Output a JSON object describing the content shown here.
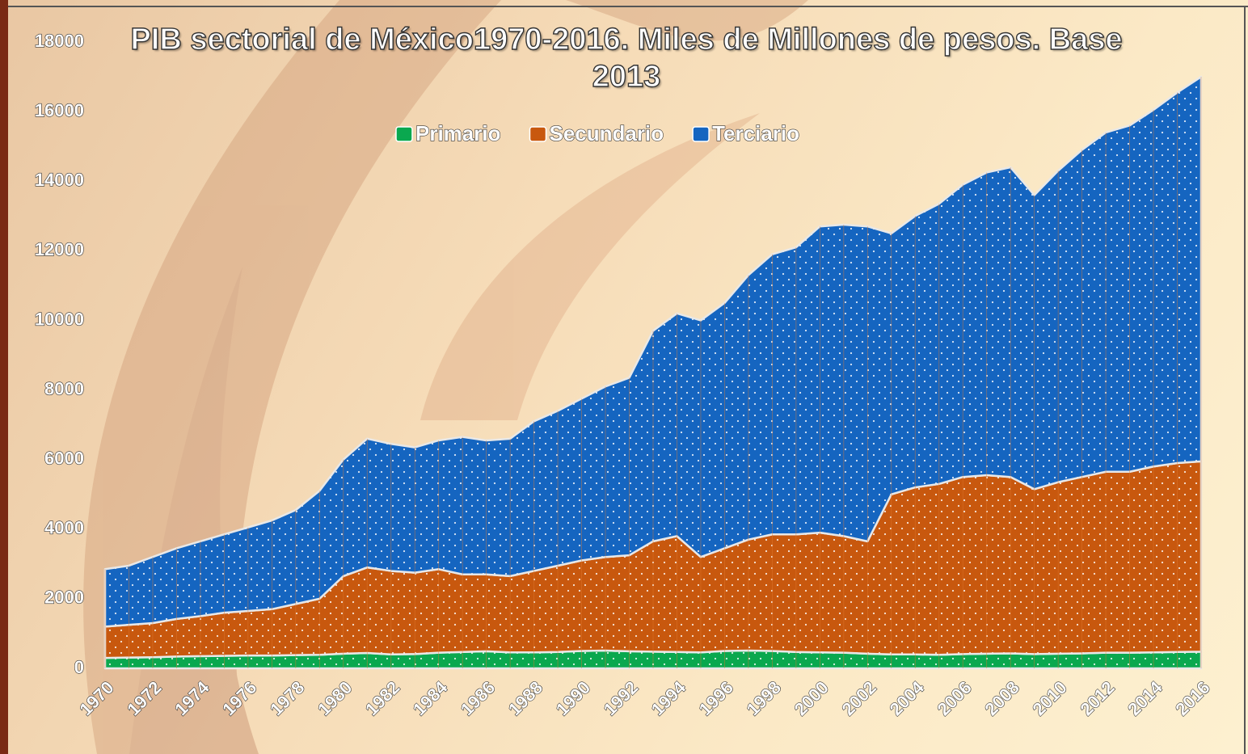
{
  "chart_data": {
    "type": "stacked-area",
    "title": "PIB sectorial de México1970-2016. Miles de Millones de pesos. Base 2013",
    "categories": [
      "1970",
      null,
      "1972",
      null,
      "1974",
      null,
      "1976",
      null,
      "1978",
      null,
      "1980",
      null,
      "1982",
      null,
      "1984",
      null,
      "1986",
      null,
      "1988",
      null,
      "1990",
      null,
      "1992",
      null,
      "1994",
      null,
      "1996",
      null,
      "1998",
      null,
      "2000",
      null,
      "2002",
      null,
      "2004",
      null,
      "2006",
      null,
      "2008",
      null,
      "2010",
      null,
      "2012",
      null,
      "2014",
      null,
      "2016"
    ],
    "series": [
      {
        "name": "Primario",
        "color": "#0aa84f",
        "values": [
          300,
          310,
          320,
          340,
          350,
          360,
          370,
          370,
          380,
          390,
          420,
          440,
          400,
          410,
          450,
          470,
          490,
          460,
          460,
          470,
          500,
          510,
          490,
          480,
          470,
          460,
          500,
          510,
          500,
          470,
          460,
          450,
          420,
          400,
          400,
          390,
          410,
          420,
          430,
          410,
          420,
          430,
          450,
          450,
          460,
          470,
          480
        ]
      },
      {
        "name": "Secundario",
        "color": "#c8580e",
        "values": [
          900,
          940,
          980,
          1080,
          1150,
          1240,
          1280,
          1330,
          1470,
          1610,
          2230,
          2460,
          2400,
          2340,
          2400,
          2230,
          2210,
          2190,
          2340,
          2480,
          2600,
          2690,
          2760,
          3170,
          3330,
          2740,
          2950,
          3190,
          3350,
          3380,
          3440,
          3350,
          3230,
          4600,
          4800,
          4910,
          5090,
          5130,
          5070,
          4740,
          4930,
          5070,
          5200,
          5200,
          5340,
          5430,
          5470
        ]
      },
      {
        "name": "Terciario",
        "color": "#1565c0",
        "values": [
          1650,
          1700,
          1900,
          2030,
          2150,
          2250,
          2400,
          2550,
          2700,
          3100,
          3350,
          3700,
          3650,
          3600,
          3700,
          3950,
          3850,
          3950,
          4300,
          4450,
          4650,
          4900,
          5100,
          6050,
          6400,
          6800,
          7050,
          7600,
          8050,
          8250,
          8800,
          8950,
          9050,
          7500,
          7800,
          8050,
          8400,
          8700,
          8900,
          8450,
          8950,
          9400,
          9750,
          9950,
          10250,
          10650,
          11050
        ]
      }
    ],
    "ylim": [
      0,
      18000
    ],
    "yticks": [
      0,
      2000,
      4000,
      6000,
      8000,
      10000,
      12000,
      14000,
      16000,
      18000
    ]
  }
}
